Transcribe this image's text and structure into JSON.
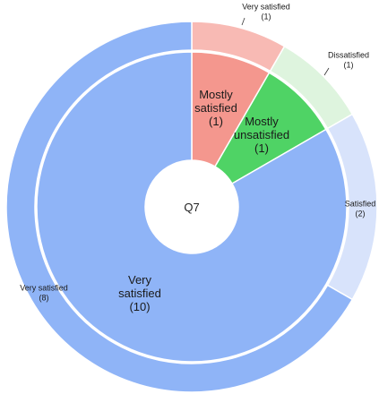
{
  "chart_data": {
    "type": "sunburst",
    "center_label": "Q7",
    "inner_ring": [
      {
        "name_lines": [
          "Mostly",
          "satisfied",
          "(1)"
        ],
        "value": 1,
        "color": "#f4978e"
      },
      {
        "name_lines": [
          "Mostly",
          "unsatisfied",
          "(1)"
        ],
        "value": 1,
        "color": "#4fd365"
      },
      {
        "name_lines": [
          "Very",
          "satisfied",
          "(10)"
        ],
        "value": 10,
        "color": "#8fb4f7"
      }
    ],
    "outer_ring": [
      {
        "name_lines": [
          "Very satisfied",
          "(1)"
        ],
        "value": 1,
        "parent": 0,
        "color": "#f8bab4"
      },
      {
        "name_lines": [
          "Dissatisfied",
          "(1)"
        ],
        "value": 1,
        "parent": 1,
        "color": "#def4de"
      },
      {
        "name_lines": [
          "Satisfied",
          "(2)"
        ],
        "value": 2,
        "parent": 2,
        "color": "#d8e3fb"
      },
      {
        "name_lines": [
          "Very satisfied",
          "(8)"
        ],
        "value": 8,
        "parent": 2,
        "color": "#8fb4f7"
      }
    ]
  }
}
